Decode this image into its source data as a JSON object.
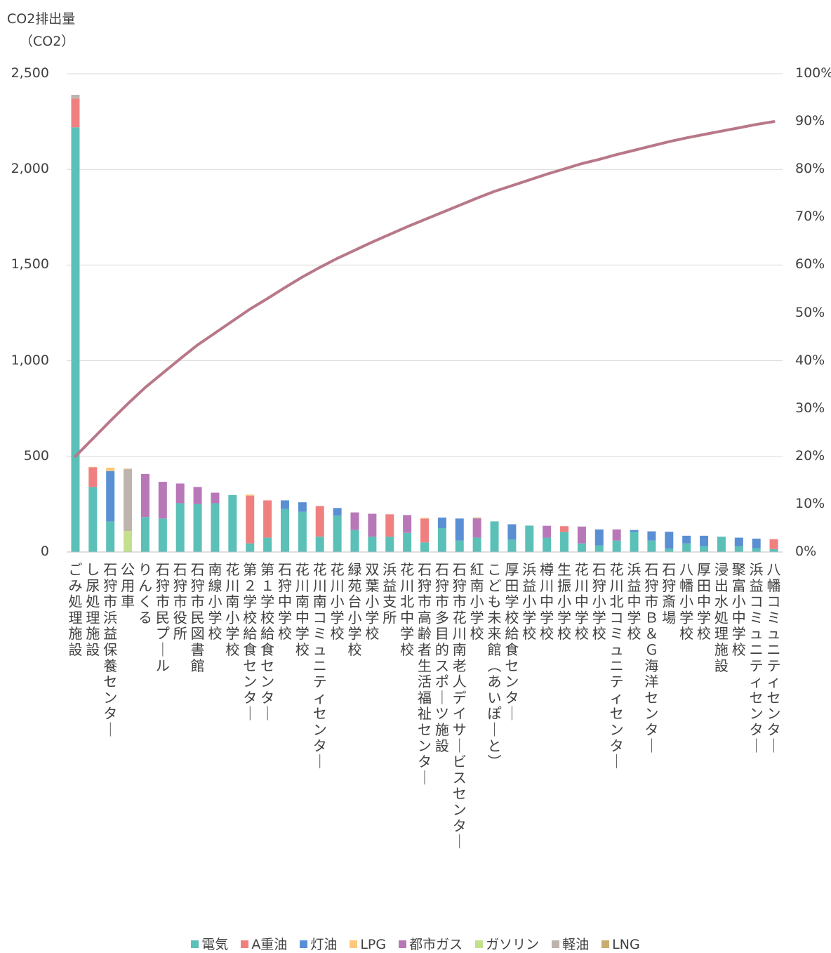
{
  "chart_data": {
    "type": "bar",
    "stacked": true,
    "ylabel_line1": "CO2排出量",
    "ylabel_line2": "（CO2）",
    "ylim": [
      0,
      2500
    ],
    "yticks": [
      0,
      500,
      1000,
      1500,
      2000,
      2500
    ],
    "ytick_labels": [
      "0",
      "500",
      "1,000",
      "1,500",
      "2,000",
      "2,500"
    ],
    "y2lim": [
      0,
      100
    ],
    "y2ticks": [
      0,
      10,
      20,
      30,
      40,
      50,
      60,
      70,
      80,
      90,
      100
    ],
    "y2tick_labels": [
      "0%",
      "10%",
      "20%",
      "30%",
      "40%",
      "50%",
      "60%",
      "70%",
      "80%",
      "90%",
      "100%"
    ],
    "grid": true,
    "legend_position": "bottom",
    "categories": [
      "ごみ処理施設",
      "し尿処理施設",
      "石狩市浜益保養センター",
      "公用車",
      "りんくる",
      "石狩市民プール",
      "石狩市役所",
      "石狩市民図書館",
      "南線小学校",
      "花川南小学校",
      "第２学校給食センター",
      "第１学校給食センター",
      "石狩中学校",
      "花川南中学校",
      "花川南コミュニティセンター",
      "花川小学校",
      "緑苑台小学校",
      "双葉小学校",
      "浜益支所",
      "花川北中学校",
      "石狩市高齢者生活福祉センター",
      "石狩市多目的スポーツ施設",
      "石狩市花川南老人デイサービスセンター",
      "紅南小学校",
      "こども未来館（あいぽーと）",
      "厚田学校給食センター",
      "浜益小学校",
      "樽川中学校",
      "生振小学校",
      "花川中学校",
      "石狩小学校",
      "花川北コミュニティセンター",
      "浜益中学校",
      "石狩市Ｂ＆Ｇ海洋センター",
      "石狩斎場",
      "八幡小学校",
      "厚田中学校",
      "浸出水処理施設",
      "聚富小中学校",
      "浜益コミュニティセンター",
      "八幡コミュニティセンター"
    ],
    "series": [
      {
        "name": "電気",
        "color": "#5bc0b8",
        "values": [
          2220,
          340,
          160,
          0,
          183,
          175,
          255,
          250,
          255,
          298,
          45,
          75,
          225,
          210,
          80,
          190,
          115,
          80,
          80,
          100,
          50,
          125,
          60,
          75,
          160,
          65,
          138,
          75,
          105,
          45,
          35,
          60,
          105,
          60,
          18,
          45,
          30,
          80,
          30,
          20,
          15
        ]
      },
      {
        "name": "A重油",
        "color": "#f08080",
        "values": [
          150,
          103,
          0,
          0,
          0,
          0,
          0,
          0,
          0,
          0,
          250,
          195,
          0,
          0,
          160,
          0,
          0,
          0,
          117,
          0,
          125,
          0,
          0,
          0,
          0,
          0,
          0,
          0,
          30,
          0,
          0,
          0,
          0,
          0,
          0,
          0,
          0,
          0,
          0,
          0,
          52
        ]
      },
      {
        "name": "灯油",
        "color": "#5b8fd4",
        "values": [
          0,
          0,
          263,
          0,
          0,
          0,
          0,
          0,
          0,
          0,
          0,
          0,
          45,
          50,
          0,
          40,
          0,
          0,
          0,
          0,
          0,
          55,
          115,
          0,
          0,
          80,
          0,
          0,
          0,
          0,
          83,
          0,
          10,
          48,
          88,
          40,
          55,
          0,
          45,
          50,
          0
        ]
      },
      {
        "name": "LPG",
        "color": "#ffc87a",
        "values": [
          0,
          2,
          18,
          0,
          0,
          0,
          0,
          0,
          0,
          0,
          5,
          0,
          0,
          0,
          0,
          0,
          0,
          0,
          0,
          0,
          3,
          0,
          0,
          0,
          0,
          0,
          0,
          0,
          0,
          0,
          0,
          0,
          0,
          0,
          0,
          0,
          0,
          0,
          0,
          0,
          0
        ]
      },
      {
        "name": "都市ガス",
        "color": "#b878b8",
        "values": [
          0,
          0,
          0,
          0,
          225,
          192,
          103,
          90,
          55,
          0,
          0,
          0,
          0,
          0,
          0,
          0,
          92,
          120,
          0,
          93,
          0,
          0,
          0,
          100,
          0,
          0,
          0,
          62,
          0,
          88,
          0,
          58,
          0,
          0,
          0,
          0,
          0,
          0,
          0,
          0,
          0
        ]
      },
      {
        "name": "ガソリン",
        "color": "#c4e08c",
        "values": [
          0,
          0,
          0,
          110,
          0,
          0,
          0,
          0,
          0,
          0,
          0,
          0,
          0,
          0,
          0,
          0,
          0,
          0,
          0,
          0,
          0,
          0,
          0,
          0,
          0,
          0,
          0,
          0,
          0,
          0,
          0,
          0,
          0,
          0,
          0,
          0,
          0,
          0,
          0,
          0,
          0
        ]
      },
      {
        "name": "軽油",
        "color": "#bfb3ad",
        "values": [
          20,
          0,
          0,
          322,
          0,
          0,
          0,
          0,
          0,
          0,
          0,
          0,
          0,
          0,
          0,
          0,
          0,
          0,
          0,
          0,
          0,
          0,
          0,
          0,
          0,
          0,
          0,
          0,
          0,
          0,
          0,
          0,
          0,
          0,
          0,
          0,
          0,
          0,
          0,
          0,
          0
        ]
      },
      {
        "name": "LNG",
        "color": "#c8ad6e",
        "values": [
          0,
          0,
          0,
          3,
          0,
          0,
          0,
          0,
          0,
          0,
          0,
          0,
          0,
          0,
          0,
          0,
          0,
          0,
          0,
          0,
          0,
          0,
          0,
          5,
          0,
          0,
          0,
          0,
          0,
          0,
          0,
          0,
          0,
          0,
          0,
          0,
          0,
          0,
          0,
          0,
          0
        ]
      }
    ],
    "cumulative_line": {
      "axis": "right",
      "color": "#b87888",
      "values": [
        20.0,
        23.7,
        27.4,
        31.0,
        34.4,
        37.4,
        40.4,
        43.3,
        45.8,
        48.3,
        50.8,
        53.0,
        55.3,
        57.5,
        59.5,
        61.4,
        63.1,
        64.8,
        66.4,
        68.0,
        69.5,
        71.0,
        72.5,
        74.0,
        75.4,
        76.6,
        77.8,
        79.0,
        80.1,
        81.2,
        82.1,
        83.1,
        84.0,
        84.9,
        85.8,
        86.6,
        87.3,
        88.0,
        88.7,
        89.4,
        90.0
      ]
    }
  }
}
